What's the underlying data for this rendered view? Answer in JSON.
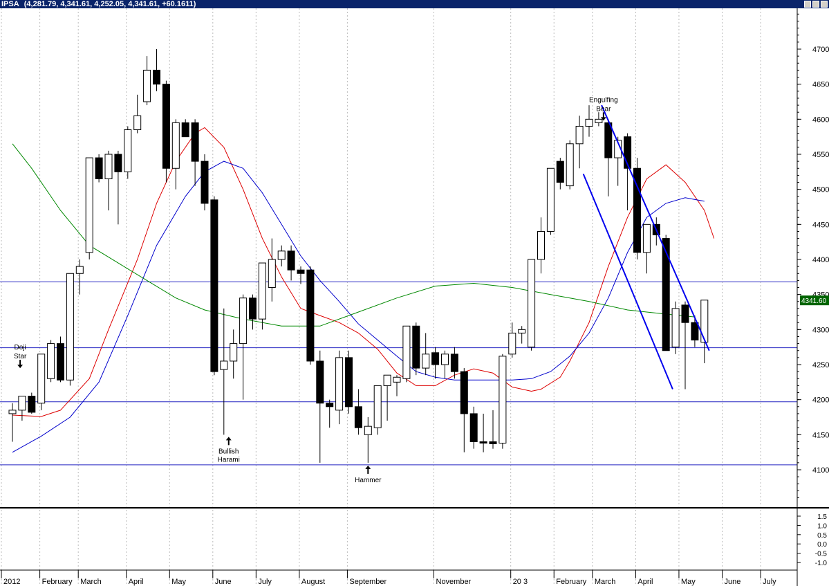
{
  "window": {
    "symbol": "IPSA",
    "ohlc": "(4,281.79, 4,341.61, 4,252.05, 4,341.61, +60.1611)"
  },
  "chart_data": {
    "type": "candlestick",
    "price_axis": {
      "ticks": [
        4100,
        4150,
        4200,
        4250,
        4300,
        4350,
        4400,
        4450,
        4500,
        4550,
        4600,
        4650,
        4700
      ],
      "range": [
        4060,
        4760
      ]
    },
    "current_price_label": "4341.60",
    "current_price": 4341.6,
    "x_axis_labels": [
      {
        "label": "2012",
        "week": 0
      },
      {
        "label": "February",
        "week": 4
      },
      {
        "label": "March",
        "week": 8
      },
      {
        "label": "April",
        "week": 13
      },
      {
        "label": "May",
        "week": 17.5
      },
      {
        "label": "June",
        "week": 22
      },
      {
        "label": "July",
        "week": 26.5
      },
      {
        "label": "August",
        "week": 31
      },
      {
        "label": "September",
        "week": 36
      },
      {
        "label": "November",
        "week": 45
      },
      {
        "label": "20 3",
        "week": 53
      },
      {
        "label": "February",
        "week": 57.5
      },
      {
        "label": "March",
        "week": 61.5
      },
      {
        "label": "April",
        "week": 66
      },
      {
        "label": "May",
        "week": 70.5
      },
      {
        "label": "June",
        "week": 75
      },
      {
        "label": "July",
        "week": 79
      }
    ],
    "candles": [
      [
        4180,
        4195,
        4140,
        4185
      ],
      [
        4185,
        4205,
        4170,
        4205
      ],
      [
        4205,
        4210,
        4180,
        4182
      ],
      [
        4195,
        4265,
        4185,
        4265
      ],
      [
        4230,
        4285,
        4225,
        4280
      ],
      [
        4280,
        4290,
        4225,
        4228
      ],
      [
        4228,
        4380,
        4220,
        4380
      ],
      [
        4380,
        4400,
        4350,
        4390
      ],
      [
        4410,
        4545,
        4400,
        4545
      ],
      [
        4545,
        4550,
        4510,
        4515
      ],
      [
        4515,
        4555,
        4470,
        4550
      ],
      [
        4550,
        4555,
        4450,
        4525
      ],
      [
        4525,
        4590,
        4515,
        4585
      ],
      [
        4585,
        4635,
        4580,
        4605
      ],
      [
        4625,
        4690,
        4620,
        4670
      ],
      [
        4670,
        4700,
        4640,
        4650
      ],
      [
        4650,
        4655,
        4510,
        4530
      ],
      [
        4530,
        4600,
        4500,
        4595
      ],
      [
        4595,
        4600,
        4575,
        4575
      ],
      [
        4595,
        4600,
        4505,
        4540
      ],
      [
        4540,
        4550,
        4470,
        4480
      ],
      [
        4485,
        4490,
        4235,
        4240
      ],
      [
        4243,
        4330,
        4150,
        4255
      ],
      [
        4255,
        4300,
        4230,
        4280
      ],
      [
        4280,
        4350,
        4200,
        4345
      ],
      [
        4345,
        4350,
        4300,
        4315
      ],
      [
        4315,
        4395,
        4300,
        4395
      ],
      [
        4360,
        4430,
        4340,
        4400
      ],
      [
        4400,
        4420,
        4390,
        4412
      ],
      [
        4412,
        4420,
        4370,
        4385
      ],
      [
        4385,
        4390,
        4365,
        4380
      ],
      [
        4385,
        4390,
        4250,
        4255
      ],
      [
        4255,
        4270,
        4110,
        4195
      ],
      [
        4195,
        4200,
        4160,
        4190
      ],
      [
        4185,
        4270,
        4165,
        4260
      ],
      [
        4260,
        4270,
        4180,
        4190
      ],
      [
        4190,
        4215,
        4150,
        4160
      ],
      [
        4150,
        4175,
        4110,
        4162
      ],
      [
        4160,
        4220,
        4150,
        4220
      ],
      [
        4220,
        4235,
        4170,
        4235
      ],
      [
        4225,
        4235,
        4205,
        4232
      ],
      [
        4230,
        4300,
        4225,
        4305
      ],
      [
        4305,
        4310,
        4235,
        4245
      ],
      [
        4245,
        4295,
        4235,
        4265
      ],
      [
        4267,
        4275,
        4230,
        4250
      ],
      [
        4250,
        4270,
        4230,
        4265
      ],
      [
        4265,
        4275,
        4230,
        4240
      ],
      [
        4240,
        4245,
        4125,
        4180
      ],
      [
        4180,
        4190,
        4130,
        4140
      ],
      [
        4140,
        4180,
        4125,
        4138
      ],
      [
        4140,
        4185,
        4130,
        4137
      ],
      [
        4138,
        4265,
        4130,
        4262
      ],
      [
        4265,
        4310,
        4260,
        4295
      ],
      [
        4295,
        4305,
        4280,
        4300
      ],
      [
        4275,
        4400,
        4270,
        4400
      ],
      [
        4400,
        4460,
        4380,
        4440
      ],
      [
        4440,
        4530,
        4435,
        4530
      ],
      [
        4540,
        4545,
        4500,
        4510
      ],
      [
        4505,
        4570,
        4500,
        4565
      ],
      [
        4565,
        4605,
        4530,
        4590
      ],
      [
        4590,
        4620,
        4575,
        4600
      ],
      [
        4595,
        4610,
        4590,
        4600
      ],
      [
        4595,
        4600,
        4490,
        4545
      ],
      [
        4545,
        4575,
        4505,
        4570
      ],
      [
        4575,
        4580,
        4470,
        4530
      ],
      [
        4530,
        4545,
        4400,
        4410
      ],
      [
        4410,
        4450,
        4380,
        4450
      ],
      [
        4450,
        4460,
        4420,
        4435
      ],
      [
        4430,
        4435,
        4270,
        4270
      ],
      [
        4275,
        4340,
        4265,
        4330
      ],
      [
        4335,
        4340,
        4215,
        4310
      ],
      [
        4310,
        4320,
        4275,
        4285
      ],
      [
        4282,
        4342,
        4252,
        4342
      ]
    ],
    "horizontal_levels": [
      4368,
      4274,
      4197,
      4107
    ],
    "moving_averages": [
      {
        "color": "#dd0000",
        "points": [
          [
            0,
            4178
          ],
          [
            3,
            4176
          ],
          [
            5,
            4185
          ],
          [
            8,
            4230
          ],
          [
            10,
            4300
          ],
          [
            13,
            4400
          ],
          [
            15,
            4480
          ],
          [
            17,
            4540
          ],
          [
            19,
            4580
          ],
          [
            20,
            4588
          ],
          [
            22,
            4560
          ],
          [
            24,
            4500
          ],
          [
            26,
            4430
          ],
          [
            28,
            4375
          ],
          [
            30,
            4330
          ],
          [
            32,
            4320
          ],
          [
            34,
            4310
          ],
          [
            36,
            4295
          ],
          [
            38,
            4272
          ],
          [
            40,
            4238
          ],
          [
            42,
            4220
          ],
          [
            44,
            4220
          ],
          [
            46,
            4235
          ],
          [
            48,
            4244
          ],
          [
            50,
            4238
          ],
          [
            52,
            4218
          ],
          [
            54,
            4212
          ],
          [
            55,
            4215
          ],
          [
            57,
            4232
          ],
          [
            58,
            4255
          ],
          [
            60,
            4310
          ],
          [
            62,
            4390
          ],
          [
            64,
            4460
          ],
          [
            66,
            4515
          ],
          [
            68,
            4535
          ],
          [
            70,
            4510
          ],
          [
            72,
            4470
          ],
          [
            73,
            4430
          ]
        ]
      },
      {
        "color": "#0000cc",
        "points": [
          [
            0,
            4125
          ],
          [
            3,
            4148
          ],
          [
            6,
            4175
          ],
          [
            9,
            4225
          ],
          [
            12,
            4320
          ],
          [
            15,
            4420
          ],
          [
            18,
            4490
          ],
          [
            20,
            4525
          ],
          [
            22,
            4540
          ],
          [
            24,
            4530
          ],
          [
            26,
            4495
          ],
          [
            28,
            4450
          ],
          [
            30,
            4405
          ],
          [
            32,
            4370
          ],
          [
            34,
            4340
          ],
          [
            36,
            4308
          ],
          [
            38,
            4285
          ],
          [
            40,
            4262
          ],
          [
            42,
            4240
          ],
          [
            44,
            4232
          ],
          [
            46,
            4228
          ],
          [
            48,
            4228
          ],
          [
            50,
            4228
          ],
          [
            52,
            4228
          ],
          [
            54,
            4230
          ],
          [
            56,
            4240
          ],
          [
            58,
            4262
          ],
          [
            60,
            4295
          ],
          [
            62,
            4345
          ],
          [
            64,
            4410
          ],
          [
            66,
            4460
          ],
          [
            68,
            4480
          ],
          [
            70,
            4488
          ],
          [
            72,
            4483
          ]
        ]
      },
      {
        "color": "#008800",
        "points": [
          [
            0,
            4565
          ],
          [
            2,
            4530
          ],
          [
            5,
            4470
          ],
          [
            8,
            4420
          ],
          [
            11,
            4395
          ],
          [
            14,
            4370
          ],
          [
            17,
            4345
          ],
          [
            20,
            4328
          ],
          [
            24,
            4315
          ],
          [
            28,
            4305
          ],
          [
            32,
            4305
          ],
          [
            36,
            4325
          ],
          [
            40,
            4345
          ],
          [
            44,
            4362
          ],
          [
            48,
            4366
          ],
          [
            52,
            4360
          ],
          [
            56,
            4350
          ],
          [
            60,
            4340
          ],
          [
            64,
            4328
          ],
          [
            68,
            4322
          ],
          [
            71,
            4318
          ]
        ]
      }
    ],
    "trendlines": [
      {
        "from": [
          61.3,
          4620
        ],
        "to": [
          72.5,
          4270
        ]
      },
      {
        "from": [
          59.4,
          4522
        ],
        "to": [
          68.7,
          4215
        ]
      }
    ],
    "annotations": [
      {
        "lines": [
          "Doji",
          "Star"
        ],
        "week": 0.8,
        "price": 4245,
        "arrow": "down"
      },
      {
        "lines": [
          "Bullish",
          "Harami"
        ],
        "week": 22.5,
        "price": 4147,
        "arrow": "up"
      },
      {
        "lines": [
          "Hammer"
        ],
        "week": 37,
        "price": 4106,
        "arrow": "up"
      },
      {
        "lines": [
          "Engulfing",
          "Bear"
        ],
        "week": 61.5,
        "price": 4598,
        "arrow": "down"
      }
    ],
    "lower_panel": {
      "ticks": [
        "1.5",
        "1.0",
        "0.5",
        "0.0",
        "-0.5",
        "-1.0"
      ]
    }
  }
}
